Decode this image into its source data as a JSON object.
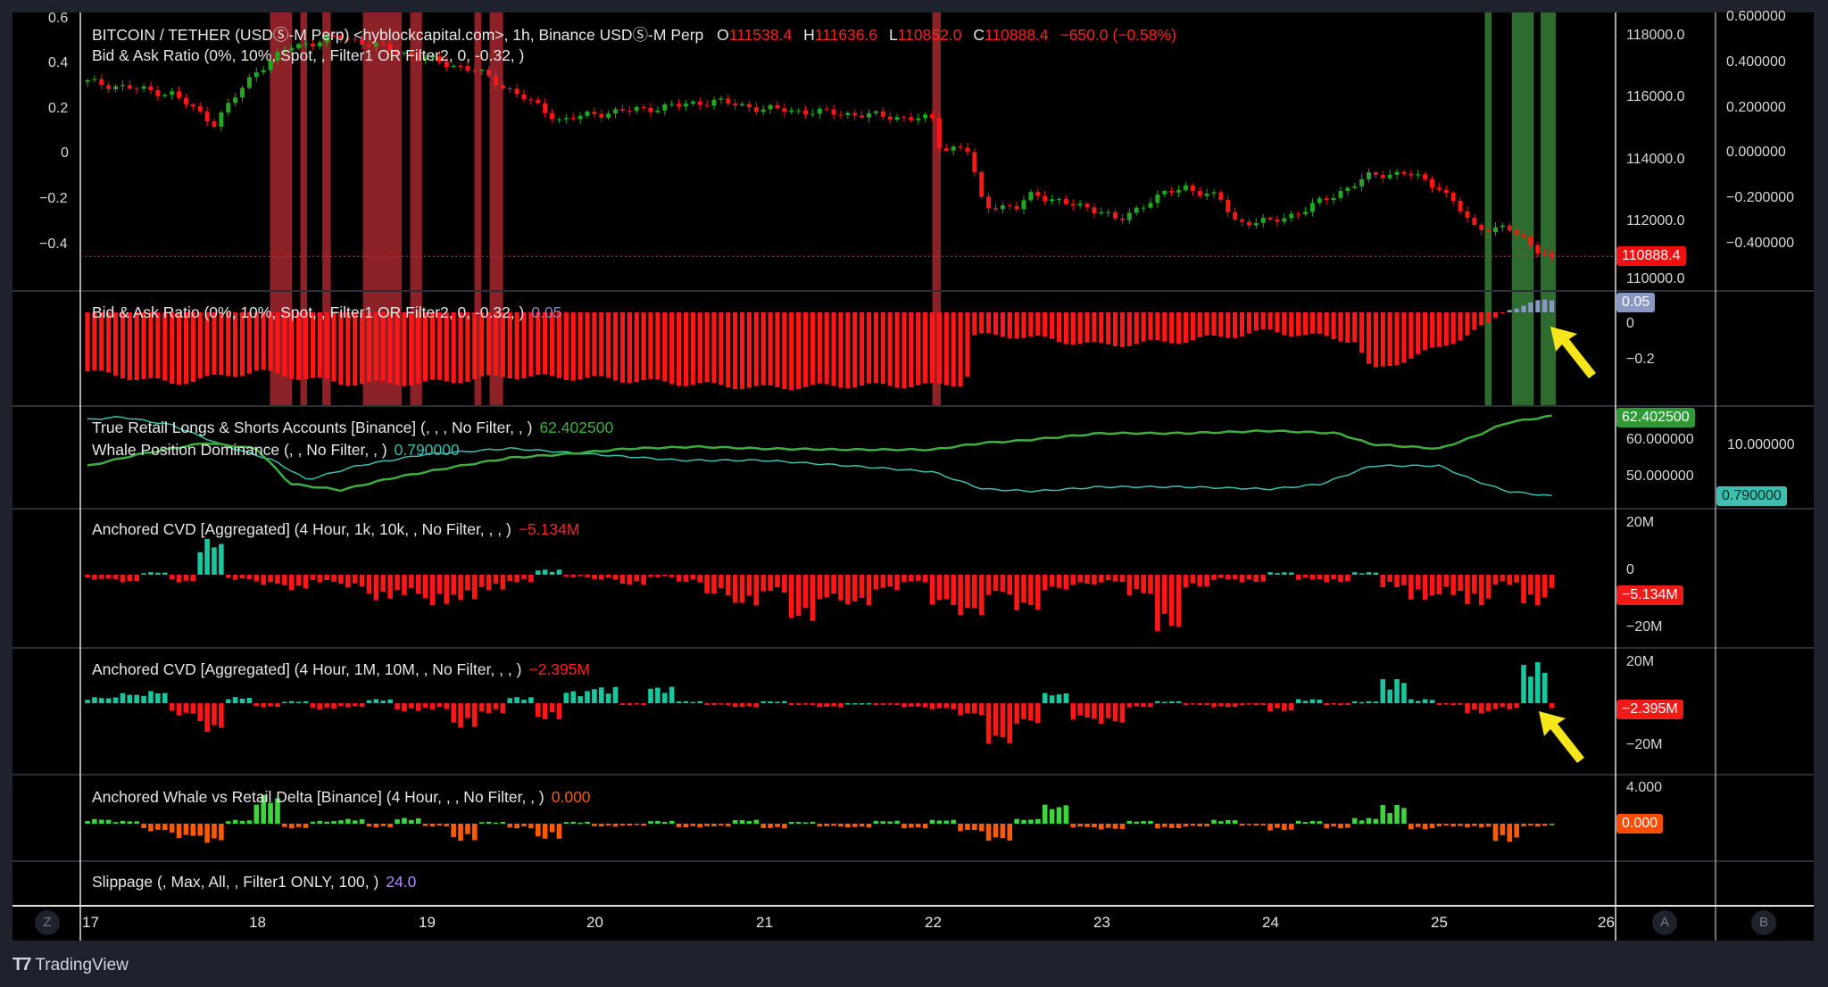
{
  "symbol_legend": {
    "title": "BITCOIN / TETHER (USDⓈ-M Perp) <hyblockcapital.com>, 1h, Binance USDⓈ-M Perp",
    "o_label": "O",
    "o": "111538.4",
    "h_label": "H",
    "h": "111636.6",
    "l_label": "L",
    "l": "110852.0",
    "c_label": "C",
    "c": "110888.4",
    "change": "−650.0 (−0.58%)",
    "sub": "Bid & Ask Ratio (0%, 10%, Spot, , Filter1 OR Filter2, 0, -0.32, )"
  },
  "indicators": {
    "bid_ask": {
      "label": "Bid & Ask Ratio (0%, 10%, Spot, , Filter1 OR Filter2, 0, -0.32, )",
      "value": "0.05"
    },
    "retail": {
      "label": "True Retail Longs & Shorts Accounts [Binance] (, , , No Filter, , )",
      "value": "62.402500"
    },
    "whale": {
      "label": "Whale Position Dominance (, , No Filter, , )",
      "value": "0.790000"
    },
    "cvd1": {
      "label": "Anchored CVD [Aggregated] (4 Hour, 1k, 10k, , No Filter, , , )",
      "value": "−5.134M"
    },
    "cvd2": {
      "label": "Anchored CVD [Aggregated] (4 Hour, 1M, 10M, , No Filter, , , )",
      "value": "−2.395M"
    },
    "delta": {
      "label": "Anchored Whale vs Retail Delta [Binance] (4 Hour, , , No Filter, , )",
      "value": "0.000"
    },
    "slippage": {
      "label": "Slippage (, Max, All, , Filter1 ONLY, 100, )",
      "value": "24.0"
    }
  },
  "axes": {
    "left_ticks": [
      "0.6",
      "0.4",
      "0.2",
      "0",
      "−0.2",
      "−0.4"
    ],
    "price_ticks": [
      "118000.0",
      "116000.0",
      "114000.0",
      "112000.0",
      "110000.0"
    ],
    "right_ticks": [
      "0.600000",
      "0.400000",
      "0.200000",
      "0.000000",
      "−0.200000",
      "−0.400000"
    ],
    "price_tag": "110888.4",
    "bid_ask_ticks": [
      "0",
      "−0.2"
    ],
    "bid_ask_tag": "0.05",
    "retail_ticks": [
      "60.000000",
      "50.000000"
    ],
    "retail_tag": "62.402500",
    "whale_ticks": [
      "10.000000"
    ],
    "whale_tag": "0.790000",
    "cvd1_ticks": [
      "20M",
      "0",
      "−20M"
    ],
    "cvd1_tag": "−5.134M",
    "cvd2_ticks": [
      "20M",
      "−20M"
    ],
    "cvd2_tag": "−2.395M",
    "delta_ticks": [
      "4.000"
    ],
    "delta_tag": "0.000",
    "time_labels": [
      "17",
      "18",
      "19",
      "20",
      "21",
      "22",
      "23",
      "24",
      "25",
      "26"
    ],
    "scale_buttons": [
      "Z",
      "A",
      "B"
    ]
  },
  "brand": "TradingView",
  "colors": {
    "up": "#22a722",
    "down": "#ff1616",
    "red_zone": "#8c2128",
    "green_zone": "#2e6b2e",
    "retail": "#3fae3f",
    "whale": "#3cbfae",
    "bid_pos": "#8a99c4",
    "cvd_up": "#19c6a0",
    "delta_up": "#3fd33f",
    "delta_down": "#ff5a00",
    "arrow": "#f5e51b"
  },
  "chart_data": {
    "type": "candlestick",
    "x_unit": "day of month",
    "price_path": [
      [
        17.0,
        116530
      ],
      [
        17.3,
        116300
      ],
      [
        17.5,
        116150
      ],
      [
        17.75,
        115200
      ],
      [
        18.0,
        116900
      ],
      [
        18.2,
        117660
      ],
      [
        18.5,
        118000
      ],
      [
        19.0,
        117280
      ],
      [
        19.3,
        116900
      ],
      [
        19.6,
        115960
      ],
      [
        19.8,
        115280
      ],
      [
        20.0,
        115500
      ],
      [
        20.5,
        115770
      ],
      [
        20.7,
        115920
      ],
      [
        21.0,
        115660
      ],
      [
        21.5,
        115500
      ],
      [
        22.0,
        115320
      ],
      [
        22.05,
        114340
      ],
      [
        22.2,
        114450
      ],
      [
        22.3,
        112570
      ],
      [
        22.5,
        112450
      ],
      [
        22.6,
        112940
      ],
      [
        22.8,
        112570
      ],
      [
        23.0,
        112380
      ],
      [
        23.1,
        112000
      ],
      [
        23.3,
        112760
      ],
      [
        23.5,
        113130
      ],
      [
        23.7,
        112760
      ],
      [
        23.8,
        112000
      ],
      [
        24.0,
        112000
      ],
      [
        24.2,
        112380
      ],
      [
        24.4,
        112940
      ],
      [
        24.6,
        113510
      ],
      [
        24.8,
        113600
      ],
      [
        25.0,
        113130
      ],
      [
        25.1,
        112570
      ],
      [
        25.2,
        111810
      ],
      [
        25.4,
        111810
      ],
      [
        25.5,
        111430
      ],
      [
        25.6,
        111060
      ],
      [
        25.67,
        110888.4
      ]
    ],
    "red_zones": [
      [
        18.08,
        18.21
      ],
      [
        18.26,
        18.3
      ],
      [
        18.39,
        18.44
      ],
      [
        18.63,
        18.86
      ],
      [
        18.91,
        18.98
      ],
      [
        19.29,
        19.33
      ],
      [
        19.38,
        19.46
      ],
      [
        22.0,
        22.05
      ]
    ],
    "green_zones": [
      [
        25.27,
        25.31
      ],
      [
        25.43,
        25.56
      ],
      [
        25.6,
        25.69
      ]
    ],
    "bid_ask": [
      [
        17.0,
        -0.25
      ],
      [
        17.5,
        -0.3
      ],
      [
        18.0,
        -0.25
      ],
      [
        18.5,
        -0.3
      ],
      [
        19.0,
        -0.3
      ],
      [
        19.5,
        -0.27
      ],
      [
        20.0,
        -0.28
      ],
      [
        20.5,
        -0.3
      ],
      [
        21.0,
        -0.32
      ],
      [
        21.5,
        -0.31
      ],
      [
        22.0,
        -0.31
      ],
      [
        22.2,
        -0.3
      ],
      [
        22.25,
        -0.1
      ],
      [
        22.5,
        -0.1
      ],
      [
        23.0,
        -0.14
      ],
      [
        23.5,
        -0.12
      ],
      [
        24.0,
        -0.08
      ],
      [
        24.5,
        -0.12
      ],
      [
        24.6,
        -0.25
      ],
      [
        24.8,
        -0.2
      ],
      [
        25.0,
        -0.15
      ],
      [
        25.3,
        -0.05
      ],
      [
        25.4,
        0.02
      ],
      [
        25.5,
        0.03
      ],
      [
        25.67,
        0.05
      ]
    ],
    "retail": [
      [
        17.0,
        52
      ],
      [
        17.3,
        54.4
      ],
      [
        17.7,
        56.8
      ],
      [
        18.0,
        55.6
      ],
      [
        18.2,
        48.3
      ],
      [
        18.5,
        47
      ],
      [
        18.8,
        49.5
      ],
      [
        19.2,
        52
      ],
      [
        19.5,
        53.7
      ],
      [
        19.8,
        54.4
      ],
      [
        20.2,
        55.6
      ],
      [
        20.6,
        56
      ],
      [
        21.0,
        55.6
      ],
      [
        21.5,
        55.4
      ],
      [
        22.0,
        55.4
      ],
      [
        22.3,
        56.8
      ],
      [
        22.5,
        57.2
      ],
      [
        23.0,
        58.8
      ],
      [
        23.5,
        58.8
      ],
      [
        24.0,
        59.3
      ],
      [
        24.4,
        58.8
      ],
      [
        24.6,
        56.5
      ],
      [
        25.0,
        55.6
      ],
      [
        25.2,
        58
      ],
      [
        25.4,
        61
      ],
      [
        25.67,
        62.4025
      ]
    ],
    "whale": [
      [
        17.0,
        14.9
      ],
      [
        17.2,
        15.4
      ],
      [
        17.5,
        13.9
      ],
      [
        17.8,
        10.2
      ],
      [
        18.1,
        7.4
      ],
      [
        18.3,
        3.8
      ],
      [
        18.6,
        6.4
      ],
      [
        19.0,
        8.5
      ],
      [
        19.5,
        9.6
      ],
      [
        20.0,
        8.5
      ],
      [
        20.5,
        7.4
      ],
      [
        21.0,
        7.4
      ],
      [
        21.5,
        6.4
      ],
      [
        22.0,
        5.3
      ],
      [
        22.3,
        2.1
      ],
      [
        22.6,
        1.7
      ],
      [
        23.0,
        2.5
      ],
      [
        23.5,
        2.5
      ],
      [
        24.0,
        2.1
      ],
      [
        24.3,
        3.0
      ],
      [
        24.6,
        6.4
      ],
      [
        25.0,
        6.4
      ],
      [
        25.2,
        3.8
      ],
      [
        25.4,
        1.7
      ],
      [
        25.67,
        0.79
      ]
    ],
    "cvd_step_hours": 4,
    "cvd1_millions": [
      -2,
      -3,
      1,
      -3,
      14,
      -2,
      -4,
      -6,
      -3,
      -5,
      -10,
      -8,
      -12,
      -10,
      -6,
      -3,
      2,
      -1,
      -2,
      -4,
      -1,
      -3,
      -8,
      -12,
      -7,
      -18,
      -10,
      -12,
      -6,
      -3,
      -12,
      -16,
      -8,
      -14,
      -6,
      -4,
      -3,
      -8,
      -22,
      -5,
      -2,
      -3,
      1,
      -2,
      -3,
      1,
      -5,
      -10,
      -8,
      -12,
      -4,
      -12,
      -5.134
    ],
    "cvd2_millions": [
      3,
      5,
      6,
      -6,
      -14,
      3,
      -2,
      1,
      -3,
      -2,
      2,
      -4,
      -3,
      -12,
      -5,
      3,
      -8,
      6,
      8,
      -1,
      8,
      1,
      -1,
      -2,
      1,
      -1,
      -2,
      0,
      -1,
      -2,
      -3,
      -6,
      -20,
      -10,
      5,
      -8,
      -10,
      -2,
      1,
      -1,
      -2,
      -1,
      -4,
      2,
      -1,
      1,
      12,
      2,
      -1,
      -5,
      -3,
      20,
      -2.395
    ],
    "delta": [
      0.5,
      0.3,
      -0.8,
      -1.5,
      -2,
      0.4,
      3,
      -0.5,
      0.3,
      0.5,
      -0.4,
      0.6,
      -0.3,
      -1.8,
      0.2,
      -0.5,
      -1.6,
      0.2,
      -0.3,
      -0.2,
      0.3,
      -0.4,
      -0.3,
      0.4,
      -0.5,
      0.2,
      -0.3,
      -0.4,
      0.3,
      -0.5,
      0.4,
      -0.8,
      -1.8,
      0.5,
      2,
      -0.4,
      -0.6,
      0.3,
      -0.5,
      -0.3,
      0.4,
      -0.2,
      -0.7,
      0.3,
      -0.5,
      0.6,
      2,
      -0.6,
      -0.3,
      -0.4,
      -1.9,
      -0.3,
      0
    ]
  }
}
